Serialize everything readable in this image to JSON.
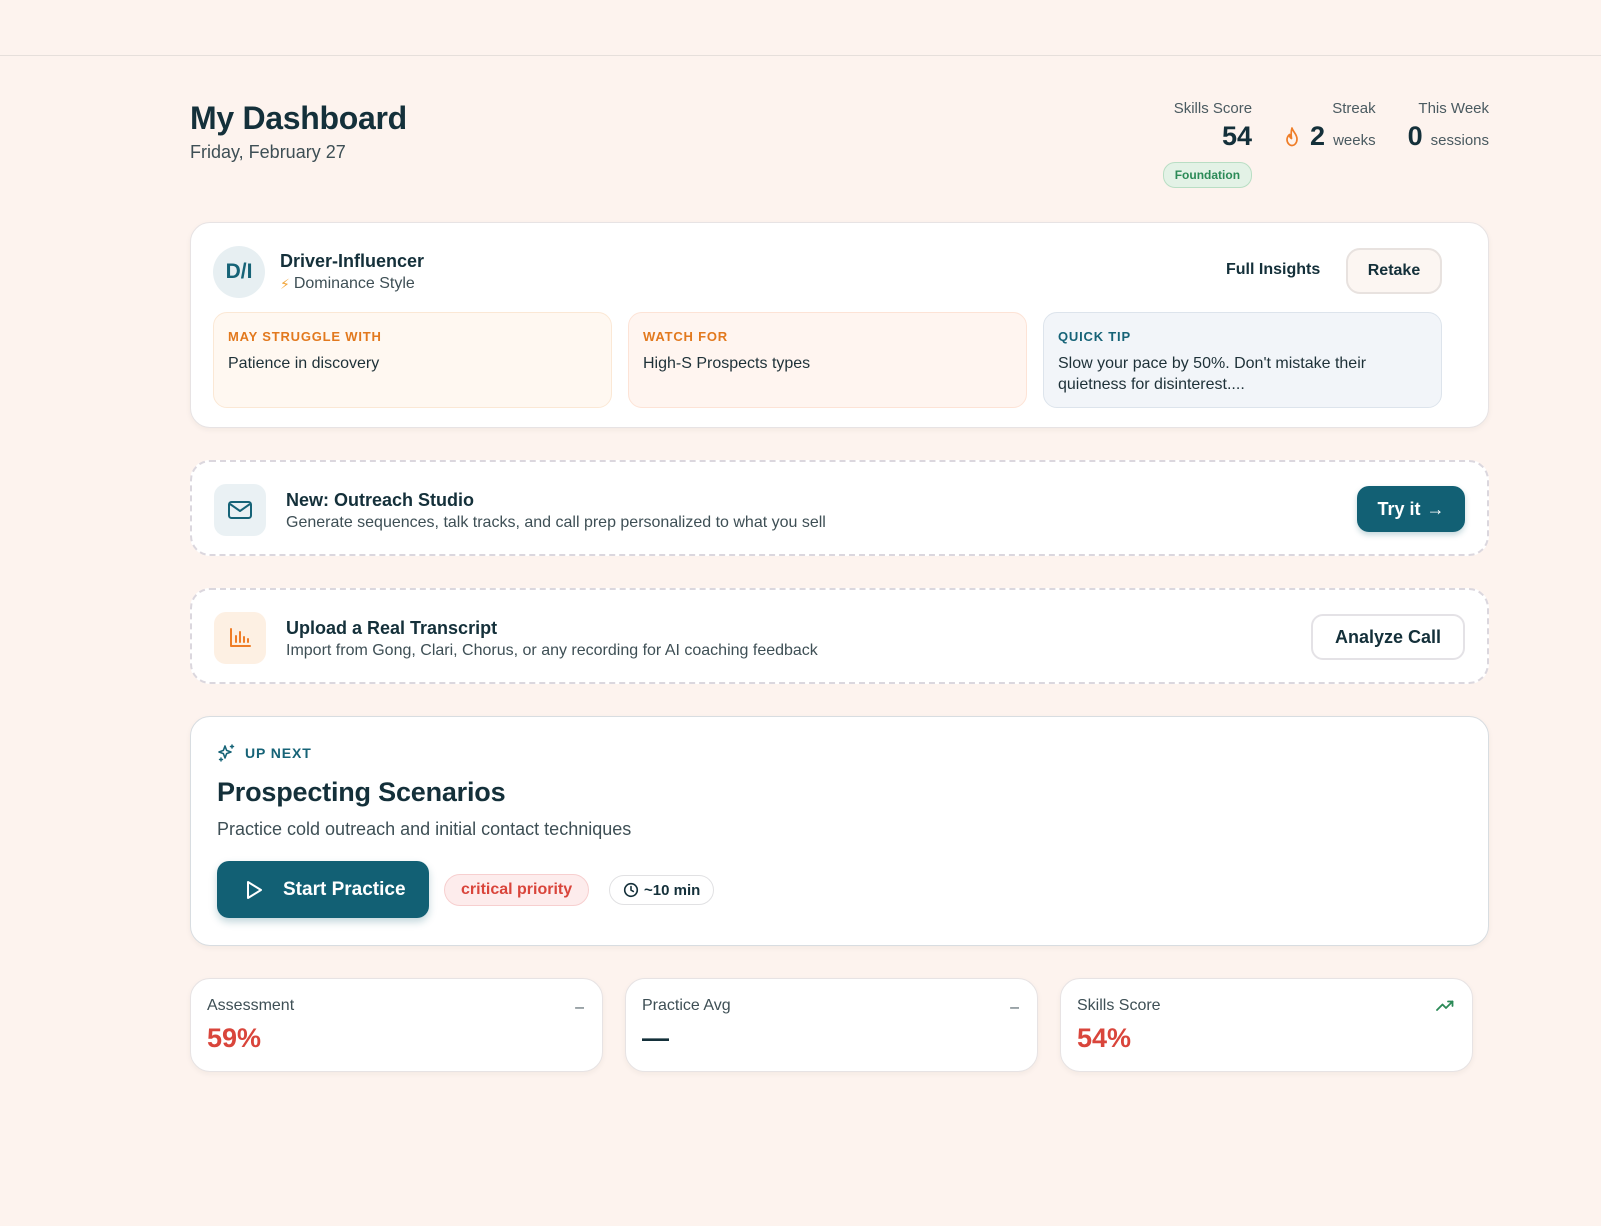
{
  "header": {
    "title": "My Dashboard",
    "date": "Friday, February 27",
    "stats": {
      "skills_score": {
        "label": "Skills Score",
        "value": "54",
        "badge": "Foundation"
      },
      "streak": {
        "label": "Streak",
        "value": "2",
        "unit": "weeks",
        "icon": "flame-icon"
      },
      "this_week": {
        "label": "This Week",
        "value": "0",
        "unit": "sessions"
      }
    }
  },
  "profile": {
    "initials": "D/I",
    "name": "Driver-Influencer",
    "style": "Dominance Style",
    "style_icon": "⚡",
    "full_insights": "Full Insights",
    "retake": "Retake",
    "tips": [
      {
        "heading": "MAY STRUGGLE WITH",
        "body": "Patience in discovery"
      },
      {
        "heading": "WATCH FOR",
        "body": "High-S Prospects types"
      },
      {
        "heading": "QUICK TIP",
        "body": "Slow your pace by 50%. Don't mistake their quietness for disinterest...."
      }
    ]
  },
  "outreach": {
    "icon": "mail-icon",
    "title": "New: Outreach Studio",
    "subtitle": "Generate sequences, talk tracks, and call prep personalized to what you sell",
    "button": "Try it",
    "button_arrow": "→"
  },
  "transcript": {
    "icon": "bar-chart-icon",
    "title": "Upload a Real Transcript",
    "subtitle": "Import from Gong, Clari, Chorus, or any recording for AI coaching feedback",
    "button": "Analyze Call"
  },
  "up_next": {
    "label": "UP NEXT",
    "title": "Prospecting Scenarios",
    "subtitle": "Practice cold outreach and initial contact techniques",
    "start_button": "Start Practice",
    "priority": "critical priority",
    "duration": "~10 min"
  },
  "metrics": [
    {
      "label": "Assessment",
      "value": "59%",
      "trend": "–"
    },
    {
      "label": "Practice Avg",
      "value": "—",
      "trend": "–"
    },
    {
      "label": "Skills Score",
      "value": "54%",
      "trend": "trending-up-icon"
    }
  ],
  "colors": {
    "background": "#fdf3ee",
    "primary": "#126074",
    "danger": "#d9453b",
    "success": "#2b8a57",
    "accent_orange": "#e2791e"
  }
}
